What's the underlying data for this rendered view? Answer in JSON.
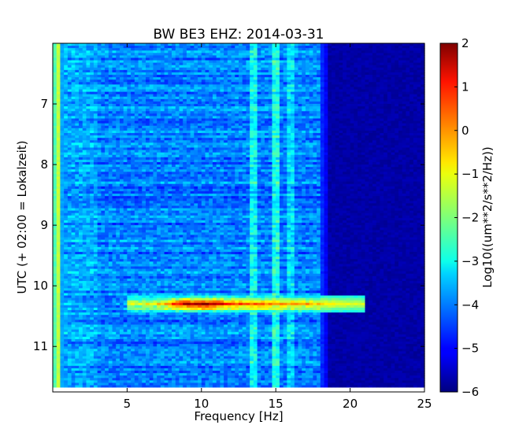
{
  "chart_data": {
    "type": "heatmap",
    "title": "BW BE3 EHZ: 2014-03-31",
    "xlabel": "Frequency [Hz]",
    "ylabel": "UTC (+ 02:00 = Lokalzeit)",
    "xlim": [
      0,
      25
    ],
    "ylim": [
      11.75,
      6.0
    ],
    "x_ticks": [
      5,
      10,
      15,
      20,
      25
    ],
    "x_tick_labels": [
      "5",
      "10",
      "15",
      "20",
      "25"
    ],
    "y_ticks": [
      7,
      8,
      9,
      10,
      11
    ],
    "y_tick_labels": [
      "7",
      "8",
      "9",
      "10",
      "11"
    ],
    "y_axis_inverted": true,
    "colormap": "jet",
    "colorbar": {
      "label": "Log10((um**2/s**2/Hz))",
      "range": [
        -6,
        2
      ],
      "ticks": [
        2,
        1,
        0,
        -1,
        -2,
        -3,
        -4,
        -5,
        -6
      ],
      "tick_labels": [
        "2",
        "1",
        "0",
        "−1",
        "−2",
        "−3",
        "−4",
        "−5",
        "−6"
      ]
    },
    "data_time_range": [
      6.0,
      11.67
    ],
    "background_level": -3.7,
    "features": [
      {
        "kind": "low-frequency band",
        "freq_hz": [
          0.25,
          0.5
        ],
        "level": -1.5
      },
      {
        "kind": "broadband noise",
        "freq_hz": [
          0.5,
          18.0
        ],
        "level": -3.7
      },
      {
        "kind": "quiet band",
        "freq_hz": [
          18.5,
          25.0
        ],
        "level": -5.7
      },
      {
        "kind": "tonal line",
        "freq_hz": 13.5,
        "level": -3.0
      },
      {
        "kind": "tonal line",
        "freq_hz": 15.0,
        "level": -2.8
      },
      {
        "kind": "tonal line",
        "freq_hz": 16.0,
        "level": -3.3
      },
      {
        "kind": "event",
        "time_utc": 10.3,
        "freq_hz": [
          5.0,
          21.0
        ],
        "peak_freq_hz": 10.0,
        "peak_level": 1.6
      }
    ]
  }
}
